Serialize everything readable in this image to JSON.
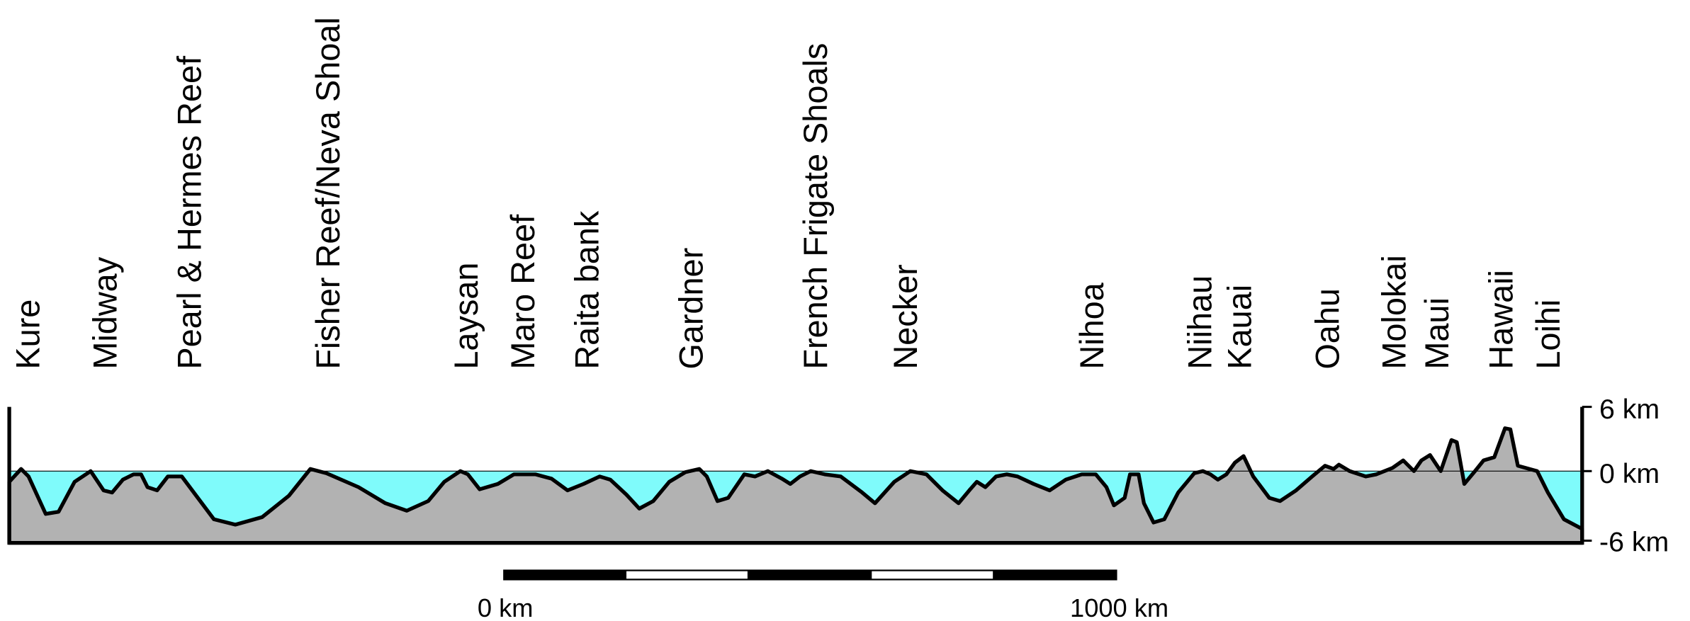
{
  "places": [
    "Kure",
    "Midway",
    "Pearl & Hermes Reef",
    "Fisher Reef/Neva Shoal",
    "Laysan",
    "Maro Reef",
    "Raita bank",
    "Gardner",
    "French Frigate Shoals",
    "Necker",
    "Nihoa",
    "Niihau",
    "Kauai",
    "Oahu",
    "Molokai",
    "Maui",
    "Hawaii",
    "Loihi"
  ],
  "depth_axis": {
    "labels": [
      "6 km",
      "0 km",
      "-6 km"
    ]
  },
  "scale_bar": {
    "labels": [
      "0 km",
      "1000 km"
    ]
  }
}
